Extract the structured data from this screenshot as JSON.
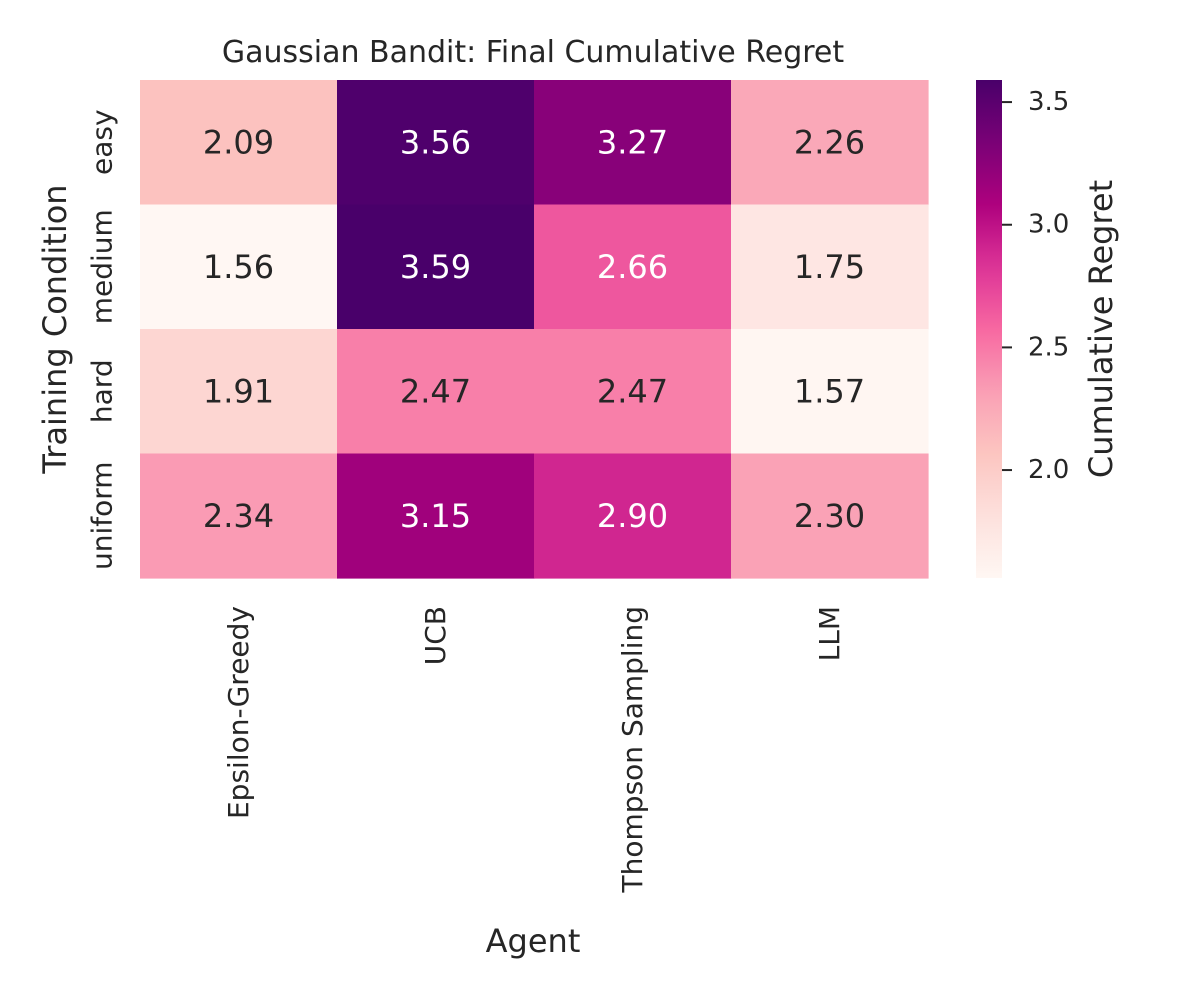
{
  "chart_data": {
    "type": "heatmap",
    "title": "Gaussian Bandit: Final Cumulative Regret",
    "xlabel": "Agent",
    "ylabel": "Training Condition",
    "x_categories": [
      "Epsilon-Greedy",
      "UCB",
      "Thompson Sampling",
      "LLM"
    ],
    "y_categories": [
      "easy",
      "medium",
      "hard",
      "uniform"
    ],
    "values": [
      [
        2.09,
        3.56,
        3.27,
        2.26
      ],
      [
        1.56,
        3.59,
        2.66,
        1.75
      ],
      [
        1.91,
        2.47,
        2.47,
        1.57
      ],
      [
        2.34,
        3.15,
        2.9,
        2.3
      ]
    ],
    "value_labels": [
      [
        "2.09",
        "3.56",
        "3.27",
        "2.26"
      ],
      [
        "1.56",
        "3.59",
        "2.66",
        "1.75"
      ],
      [
        "1.91",
        "2.47",
        "2.47",
        "1.57"
      ],
      [
        "2.34",
        "3.15",
        "2.90",
        "2.30"
      ]
    ],
    "colormap": "RdPu",
    "colorbar": {
      "label": "Cumulative Regret",
      "range": [
        1.56,
        3.59
      ],
      "ticks": [
        2.0,
        2.5,
        3.0,
        3.5
      ],
      "tick_labels": [
        "2.0",
        "2.5",
        "3.0",
        "3.5"
      ]
    },
    "legend": "right"
  }
}
